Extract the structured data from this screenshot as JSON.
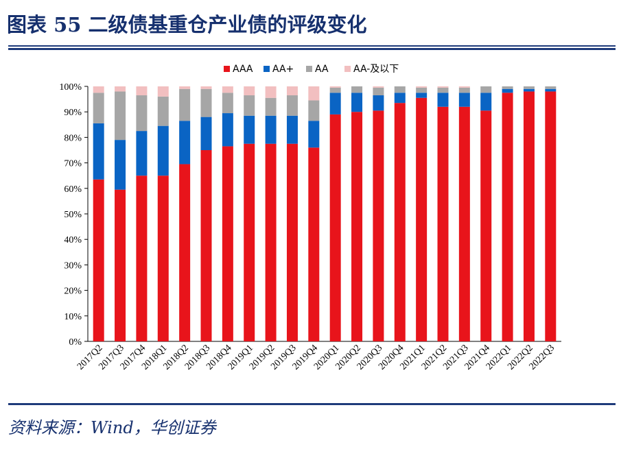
{
  "header": {
    "title": "图表 55  二级债基重仓产业债的评级变化"
  },
  "footer": {
    "source": "资料来源：Wind，华创证券"
  },
  "chart_data": {
    "type": "bar",
    "stacked": true,
    "title": "",
    "xlabel": "",
    "ylabel": "",
    "ylim": [
      0,
      100
    ],
    "yticks": [
      "0%",
      "10%",
      "20%",
      "30%",
      "40%",
      "50%",
      "60%",
      "70%",
      "80%",
      "90%",
      "100%"
    ],
    "legend_position": "top",
    "categories": [
      "2017Q2",
      "2017Q3",
      "2017Q4",
      "2018Q1",
      "2018Q2",
      "2018Q3",
      "2018Q4",
      "2019Q1",
      "2019Q2",
      "2019Q3",
      "2019Q4",
      "2020Q1",
      "2020Q2",
      "2020Q3",
      "2020Q4",
      "2021Q1",
      "2021Q2",
      "2021Q3",
      "2021Q4",
      "2022Q1",
      "2022Q2",
      "2022Q3"
    ],
    "series": [
      {
        "name": "AAA",
        "color": "#e8141b",
        "values": [
          63.5,
          59.5,
          65,
          65,
          69.5,
          75,
          76.5,
          77.5,
          77.5,
          77.5,
          76,
          89,
          90,
          90.5,
          93.5,
          95.5,
          92,
          92,
          90.5,
          97.5,
          98,
          98
        ]
      },
      {
        "name": "AA+",
        "color": "#0a64c4",
        "values": [
          22,
          19.5,
          17.5,
          19.5,
          17,
          13,
          13,
          11,
          11,
          11,
          10.5,
          8.5,
          7.5,
          6,
          4,
          2,
          5.5,
          5.5,
          7,
          1.5,
          1,
          1
        ]
      },
      {
        "name": "AA",
        "color": "#a6a6a6",
        "values": [
          12,
          19,
          14,
          11.5,
          12.5,
          11,
          8,
          8,
          7,
          8,
          8,
          2,
          2.5,
          3,
          2.5,
          2,
          2,
          2,
          2.5,
          1,
          1,
          1
        ]
      },
      {
        "name": "AA-及以下",
        "color": "#f2bfc0",
        "values": [
          2.5,
          2,
          3.5,
          4,
          1,
          1,
          2.5,
          3.5,
          4.5,
          3.5,
          5.5,
          0.5,
          0,
          0.5,
          0,
          0.5,
          0.5,
          0.5,
          0,
          0,
          0,
          0
        ]
      }
    ]
  }
}
